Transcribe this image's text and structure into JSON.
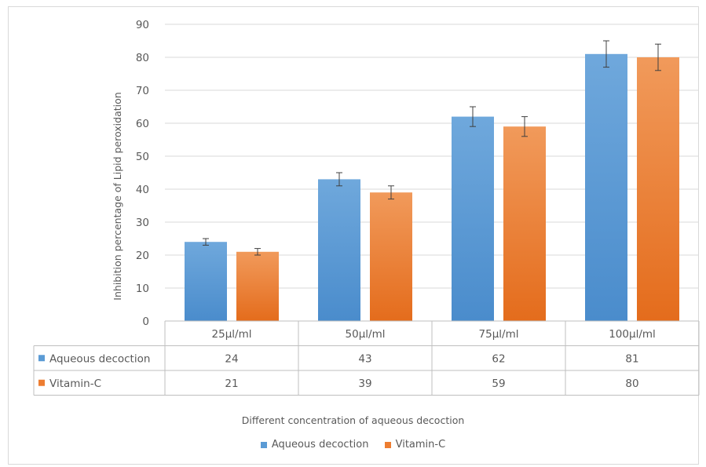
{
  "chart_data": {
    "type": "bar",
    "categories": [
      "25µl/ml",
      "50µl/ml",
      "75µl/ml",
      "100µl/ml"
    ],
    "series": [
      {
        "name": "Aqueous decoction",
        "values": [
          24,
          43,
          62,
          81
        ],
        "errors": [
          1,
          2,
          3,
          4
        ],
        "color": "#5b9bd5"
      },
      {
        "name": "Vitamin-C",
        "values": [
          21,
          39,
          59,
          80
        ],
        "errors": [
          1,
          2,
          3,
          4
        ],
        "color": "#ed7d31"
      }
    ],
    "xlabel": "Different concentration of aqueous decoction",
    "ylabel": "Inhibition percentage of Lipid peroxidation",
    "ylim": [
      0,
      90
    ],
    "yticks": [
      0,
      10,
      20,
      30,
      40,
      50,
      60,
      70,
      80,
      90
    ],
    "grid": true,
    "legend_position": "bottom",
    "data_table": true
  }
}
